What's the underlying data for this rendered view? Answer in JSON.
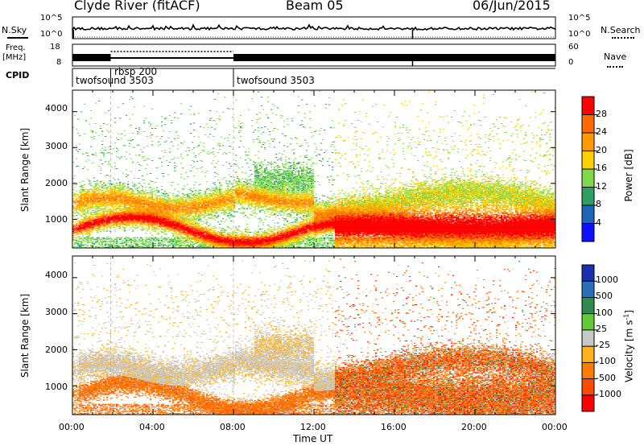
{
  "header": {
    "station": "Clyde River (fitACF)",
    "beam": "Beam 05",
    "date": "06/Jun/2015"
  },
  "panels": {
    "nsky": {
      "left_label": "N.Sky",
      "right_label": "N.Search",
      "left_ticks": [
        "10^5",
        "10^0"
      ],
      "right_ticks": [
        "10^5",
        "10^0"
      ]
    },
    "freq": {
      "left_label_top": "Freq.",
      "left_label_bottom": "[MHz]",
      "right_label": "Nave",
      "left_ticks": [
        "18",
        "8"
      ],
      "right_ticks": [
        "60",
        "0"
      ]
    },
    "cpid": {
      "label": "CPID",
      "segments": [
        {
          "name": "twofsound 3503",
          "start_hour": 0,
          "end_hour": 1.9
        },
        {
          "name": "rbsp 200",
          "start_hour": 1.9,
          "end_hour": 8.0
        },
        {
          "name": "twofsound 3503",
          "start_hour": 8.0,
          "end_hour": 24
        }
      ]
    }
  },
  "chart_data": [
    {
      "type": "heatmap",
      "title": "",
      "xlabel": "",
      "ylabel": "Slant Range [km]",
      "x_range_hours": [
        0,
        24
      ],
      "y_range_km": [
        200,
        4600
      ],
      "yticks": [
        1000,
        2000,
        3000,
        4000
      ],
      "colorbar": {
        "label": "Power [dB]",
        "ticks": [
          "28",
          "24",
          "20",
          "16",
          "12",
          "8",
          "4"
        ],
        "colors": [
          "#ff0000",
          "#ff6a00",
          "#ff9900",
          "#ffd000",
          "#7fd94a",
          "#2f9e63",
          "#1f66b8",
          "#1010ff"
        ]
      }
    },
    {
      "type": "heatmap",
      "title": "",
      "xlabel": "Time UT",
      "ylabel": "Slant Range [km]",
      "x_range_hours": [
        0,
        24
      ],
      "y_range_km": [
        200,
        4600
      ],
      "yticks": [
        1000,
        2000,
        3000,
        4000
      ],
      "xticks": [
        "00:00",
        "04:00",
        "08:00",
        "12:00",
        "16:00",
        "20:00",
        "00:00"
      ],
      "colorbar": {
        "label": "Velocity [m s",
        "label_sup": "-1",
        "label_end": "]",
        "ticks": [
          "1000",
          "500",
          "100",
          "25",
          "-25",
          "-100",
          "-500",
          "-1000"
        ],
        "colors": [
          "#1a2fb0",
          "#2c6fb8",
          "#2e8a4e",
          "#63c83a",
          "#c8c8c8",
          "#ffb21c",
          "#ff7a00",
          "#ff4a00",
          "#ff0000"
        ]
      }
    }
  ]
}
